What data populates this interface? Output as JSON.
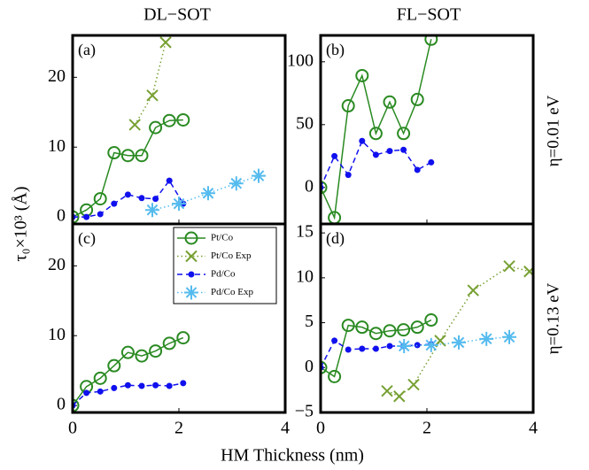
{
  "column_titles": [
    "DL−SOT",
    "FL−SOT"
  ],
  "row_labels": [
    "η=0.01 eV",
    "η=0.13 eV"
  ],
  "xlabel": "HM Thickness (nm)",
  "ylabel": "τ₀×10³ (Å)",
  "chart_data": [
    {
      "type": "line",
      "title": "(a)",
      "xlim": [
        0,
        4
      ],
      "xticks": [
        0,
        2,
        4
      ],
      "ylim": [
        -1,
        26
      ],
      "yticks": [
        0,
        10,
        20
      ],
      "series": [
        {
          "color": "#2a8a22",
          "marker": "circle",
          "linestyle": "solid",
          "x": [
            0,
            0.26,
            0.52,
            0.78,
            1.04,
            1.3,
            1.56,
            1.82,
            2.08
          ],
          "values": [
            0,
            1,
            2.6,
            9.2,
            8.8,
            8.8,
            12.8,
            13.8,
            13.9
          ]
        },
        {
          "color": "#77a033",
          "marker": "x",
          "linestyle": "dotted",
          "x": [
            1.17,
            1.5,
            1.75
          ],
          "values": [
            13.2,
            17.4,
            25
          ]
        },
        {
          "color": "#1010ee",
          "marker": "dot",
          "linestyle": "dashed",
          "x": [
            0,
            0.26,
            0.52,
            0.78,
            1.04,
            1.3,
            1.56,
            1.82,
            2.08
          ],
          "values": [
            0,
            0,
            0.4,
            1.9,
            3.2,
            2.7,
            2.6,
            5.2,
            1.9
          ]
        },
        {
          "color": "#55bbee",
          "marker": "star",
          "linestyle": "dotted",
          "x": [
            1.5,
            2.0,
            2.55,
            3.08,
            3.5
          ],
          "values": [
            1.0,
            1.9,
            3.4,
            4.8,
            5.9
          ]
        }
      ]
    },
    {
      "type": "line",
      "title": "(b)",
      "xlim": [
        0,
        4
      ],
      "xticks": [
        0,
        2,
        4
      ],
      "ylim": [
        -29,
        121
      ],
      "yticks": [
        0,
        50,
        100
      ],
      "series": [
        {
          "color": "#2a8a22",
          "marker": "circle",
          "linestyle": "solid",
          "x": [
            0,
            0.26,
            0.52,
            0.78,
            1.04,
            1.3,
            1.56,
            1.82,
            2.08
          ],
          "values": [
            0,
            -24,
            65,
            89,
            43,
            68,
            43,
            70,
            118
          ]
        },
        {
          "color": "#1010ee",
          "marker": "dot",
          "linestyle": "dashed",
          "x": [
            0,
            0.26,
            0.52,
            0.78,
            1.04,
            1.3,
            1.56,
            1.82,
            2.08
          ],
          "values": [
            0,
            25,
            10,
            37,
            26,
            29,
            30,
            14,
            20
          ]
        }
      ]
    },
    {
      "type": "line",
      "title": "(c)",
      "xlim": [
        0,
        4
      ],
      "xticks": [
        0,
        2,
        4
      ],
      "ylim": [
        -1,
        26
      ],
      "yticks": [
        0,
        10,
        20
      ],
      "legend": "upper right",
      "series": [
        {
          "name": "Pt/Co",
          "color": "#2a8a22",
          "marker": "circle",
          "linestyle": "solid",
          "x": [
            0,
            0.26,
            0.52,
            0.78,
            1.04,
            1.3,
            1.56,
            1.82,
            2.08
          ],
          "values": [
            0,
            2.7,
            3.9,
            5.7,
            7.6,
            7.1,
            7.8,
            8.9,
            9.7
          ]
        },
        {
          "name": "Pt/Co Exp",
          "color": "#77a033",
          "marker": "x",
          "linestyle": "dotted",
          "x": [],
          "values": []
        },
        {
          "name": "Pd/Co",
          "color": "#1010ee",
          "marker": "dot",
          "linestyle": "dashed",
          "x": [
            0,
            0.26,
            0.52,
            0.78,
            1.04,
            1.3,
            1.56,
            1.82,
            2.08
          ],
          "values": [
            0,
            1.8,
            2.0,
            2.5,
            2.9,
            2.8,
            2.9,
            2.8,
            3.2
          ]
        },
        {
          "name": "Pd/Co Exp",
          "color": "#55bbee",
          "marker": "star",
          "linestyle": "dotted",
          "x": [],
          "values": []
        }
      ]
    },
    {
      "type": "line",
      "title": "(d)",
      "xlim": [
        0,
        4
      ],
      "xticks": [
        0,
        2,
        4
      ],
      "ylim": [
        -5,
        16
      ],
      "yticks": [
        {
          "value": -5,
          "label": "−5"
        },
        0,
        5,
        10,
        15
      ],
      "series": [
        {
          "color": "#2a8a22",
          "marker": "circle",
          "linestyle": "solid",
          "x": [
            0,
            0.26,
            0.52,
            0.78,
            1.04,
            1.3,
            1.56,
            1.82,
            2.08
          ],
          "values": [
            0,
            -1,
            4.7,
            4.5,
            3.8,
            4.1,
            4.2,
            4.5,
            5.3
          ]
        },
        {
          "color": "#77a033",
          "marker": "x",
          "linestyle": "dotted",
          "x": [
            1.25,
            1.48,
            1.75,
            2.25,
            2.87,
            3.55,
            3.93
          ],
          "values": [
            -2.6,
            -3.2,
            -1.9,
            3.0,
            8.6,
            11.3,
            10.7
          ]
        },
        {
          "color": "#1010ee",
          "marker": "dot",
          "linestyle": "dashed",
          "x": [
            0,
            0.26,
            0.52,
            0.78,
            1.04,
            1.3,
            1.56,
            1.82,
            2.08
          ],
          "values": [
            0,
            3.0,
            2.0,
            2.1,
            2.1,
            2.4,
            2.4,
            2.5,
            2.6
          ]
        },
        {
          "color": "#55bbee",
          "marker": "star",
          "linestyle": "dotted",
          "x": [
            1.57,
            2.08,
            2.6,
            3.12,
            3.55
          ],
          "values": [
            2.4,
            2.5,
            2.8,
            3.2,
            3.4
          ]
        }
      ]
    }
  ]
}
